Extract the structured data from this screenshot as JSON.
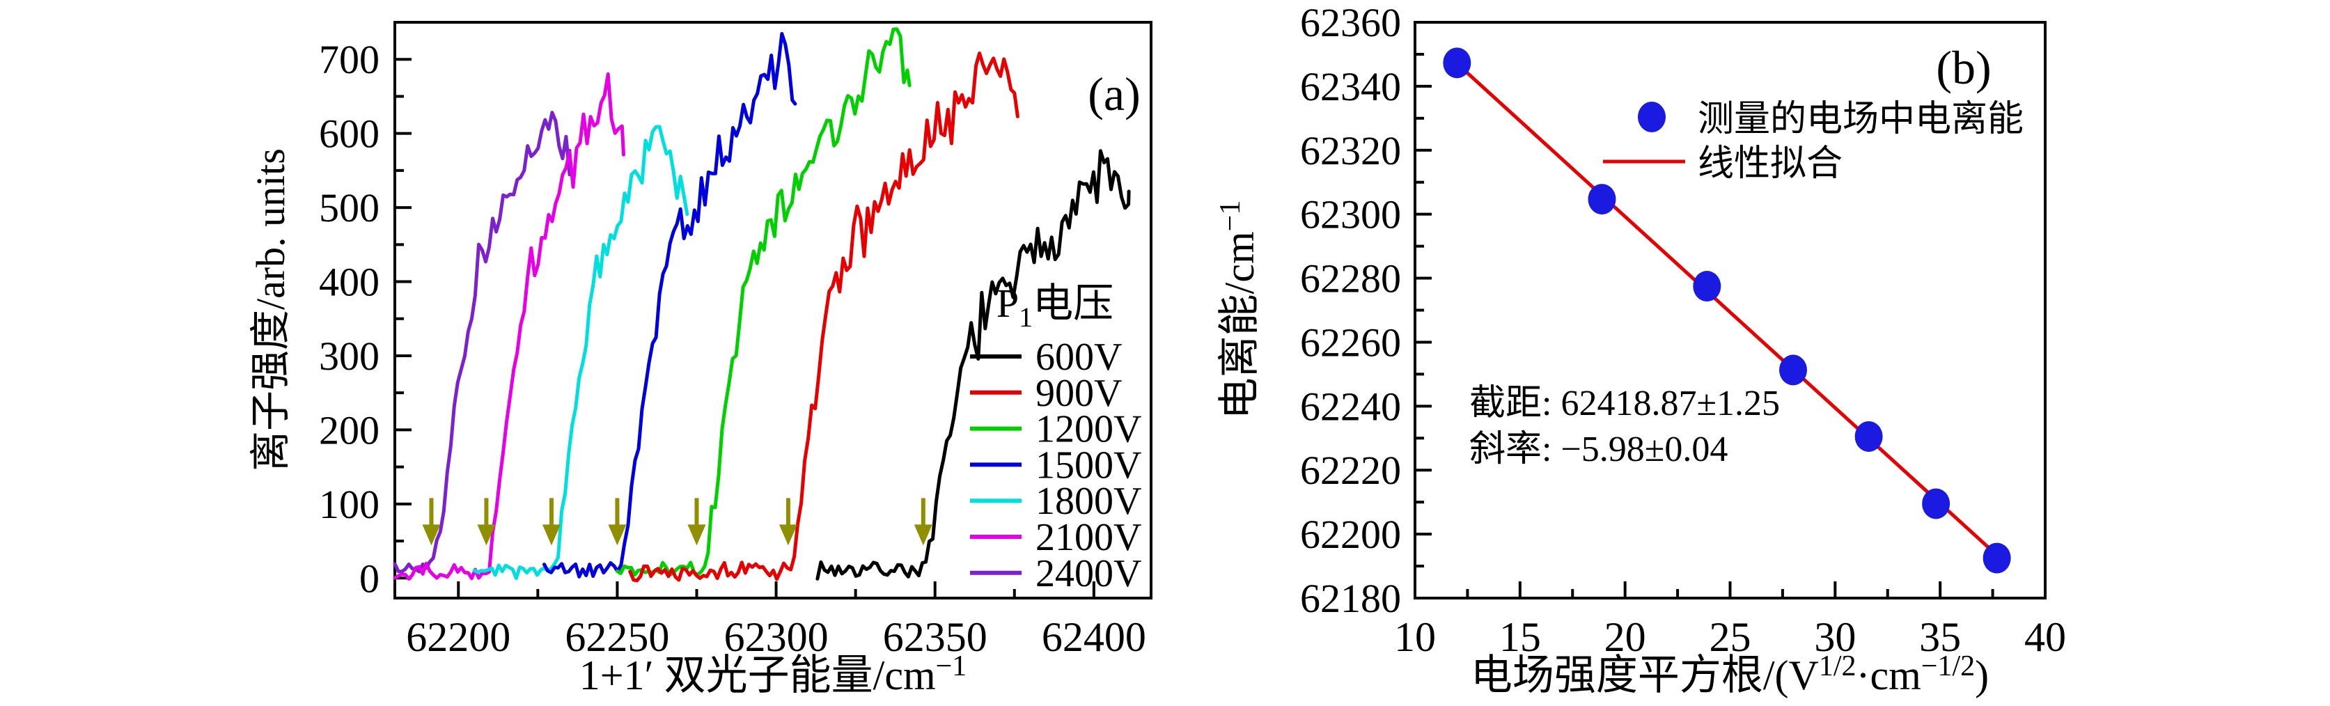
{
  "figure": {
    "background": "#ffffff",
    "frame_color": "#000000"
  },
  "chart_data": [
    {
      "type": "line",
      "panel_label": "(a)",
      "xlabel_parts": [
        {
          "t": "1+1′ 双光子能量/cm"
        },
        {
          "t": "−1",
          "sup": true
        }
      ],
      "ylabel": "离子强度/arb. units",
      "xlim": [
        62180,
        62418
      ],
      "ylim": [
        -27,
        750
      ],
      "x_ticks": [
        62200,
        62250,
        62300,
        62350,
        62400
      ],
      "x_minor_ticks": [
        62225,
        62275,
        62325,
        62375
      ],
      "y_ticks": [
        0,
        100,
        200,
        300,
        400,
        500,
        600,
        700
      ],
      "y_minor_ticks": [
        50,
        150,
        250,
        350,
        450,
        550,
        650
      ],
      "legend": {
        "title_parts": [
          {
            "t": "P"
          },
          {
            "t": "1",
            "sub": true
          },
          {
            "t": "电压"
          }
        ],
        "entries": [
          "600V",
          "900V",
          "1200V",
          "1500V",
          "1800V",
          "2100V",
          "2400V"
        ]
      },
      "arrows": {
        "color": "#8f8f00",
        "x": [
          62346.3,
          62303.8,
          62275.0,
          62250.0,
          62229.3,
          62208.8,
          62191.5
        ],
        "y_top": 108,
        "y_tip": 44
      },
      "series": [
        {
          "label": "600V",
          "color": "#000000",
          "seed": 7,
          "x_start": 62313,
          "onset": 62347.3,
          "rise_w": 14,
          "x_peak": 62404,
          "x_end": 62411,
          "base": 12,
          "rise_to": 330,
          "max": 555,
          "end_y": 495
        },
        {
          "label": "900V",
          "color": "#e60000",
          "seed": 13,
          "x_start": 62254,
          "onset": 62304.7,
          "rise_w": 14,
          "x_peak": 62371,
          "x_end": 62376,
          "base": 10,
          "rise_to": 420,
          "max": 715,
          "end_y": 655
        },
        {
          "label": "1200V",
          "color": "#00cf00",
          "seed": 21,
          "x_start": 62250,
          "onset": 62277.5,
          "rise_w": 14,
          "x_peak": 62337,
          "x_end": 62342,
          "base": 11,
          "rise_to": 430,
          "max": 735,
          "end_y": 660
        },
        {
          "label": "1500V",
          "color": "#0000dd",
          "seed": 5,
          "x_start": 62227,
          "onset": 62251.3,
          "rise_w": 14,
          "x_peak": 62301,
          "x_end": 62306,
          "base": 12,
          "rise_to": 430,
          "max": 712,
          "end_y": 675
        },
        {
          "label": "1800V",
          "color": "#00dede",
          "seed": 17,
          "x_start": 62205,
          "onset": 62230.5,
          "rise_w": 13,
          "x_peak": 62262,
          "x_end": 62272,
          "base": 12,
          "rise_to": 420,
          "max": 602,
          "end_y": 525
        },
        {
          "label": "2100V",
          "color": "#e600e6",
          "seed": 29,
          "x_start": 62180,
          "onset": 62209.5,
          "rise_w": 13,
          "x_peak": 62246,
          "x_end": 62252,
          "base": 9,
          "rise_to": 420,
          "max": 658,
          "end_y": 590
        },
        {
          "label": "2400V",
          "color": "#7c22cc",
          "seed": 31,
          "x_start": 62180,
          "onset": 62192.5,
          "rise_w": 13,
          "x_peak": 62228,
          "x_end": 62235,
          "base": 12,
          "rise_to": 400,
          "max": 622,
          "end_y": 575
        }
      ]
    },
    {
      "type": "scatter",
      "panel_label": "(b)",
      "xlabel_parts": [
        {
          "t": "电场强度平方根/(V"
        },
        {
          "t": "1/2",
          "sup": true
        },
        {
          "t": "·cm"
        },
        {
          "t": "−1/2",
          "sup": true
        },
        {
          "t": ")"
        }
      ],
      "ylabel_parts": [
        {
          "t": "电离能/cm"
        },
        {
          "t": "−1",
          "sup": true
        }
      ],
      "xlim": [
        10,
        40
      ],
      "ylim": [
        62180,
        62360
      ],
      "x_ticks": [
        10,
        15,
        20,
        25,
        30,
        35,
        40
      ],
      "x_minor_ticks": [
        12.5,
        17.5,
        22.5,
        27.5,
        32.5,
        37.5
      ],
      "y_ticks": [
        62360,
        62340,
        62320,
        62300,
        62280,
        62260,
        62240,
        62220,
        62200,
        62180
      ],
      "y_minor_ticks": [
        62350,
        62330,
        62310,
        62290,
        62270,
        62250,
        62230,
        62210,
        62190
      ],
      "points": [
        [
          12.0,
          62347.3
        ],
        [
          18.9,
          62304.7
        ],
        [
          23.9,
          62277.5
        ],
        [
          28.0,
          62251.3
        ],
        [
          31.6,
          62230.5
        ],
        [
          34.8,
          62209.5
        ],
        [
          37.7,
          62192.5
        ]
      ],
      "point_color": "#1a1ae0",
      "fit": {
        "intercept": 62418.87,
        "slope": -5.98,
        "x_from": 12.0,
        "x_to": 37.7,
        "color": "#e60000"
      },
      "legend": {
        "measured_label": "测量的电场中电离能",
        "fit_label": "线性拟合",
        "measured_color": "#1a1ae0",
        "fit_color": "#e60000"
      },
      "annotation": {
        "color": "#e60000",
        "lines": [
          "截距: 62418.87±1.25",
          "斜率: −5.98±0.04"
        ]
      }
    }
  ]
}
